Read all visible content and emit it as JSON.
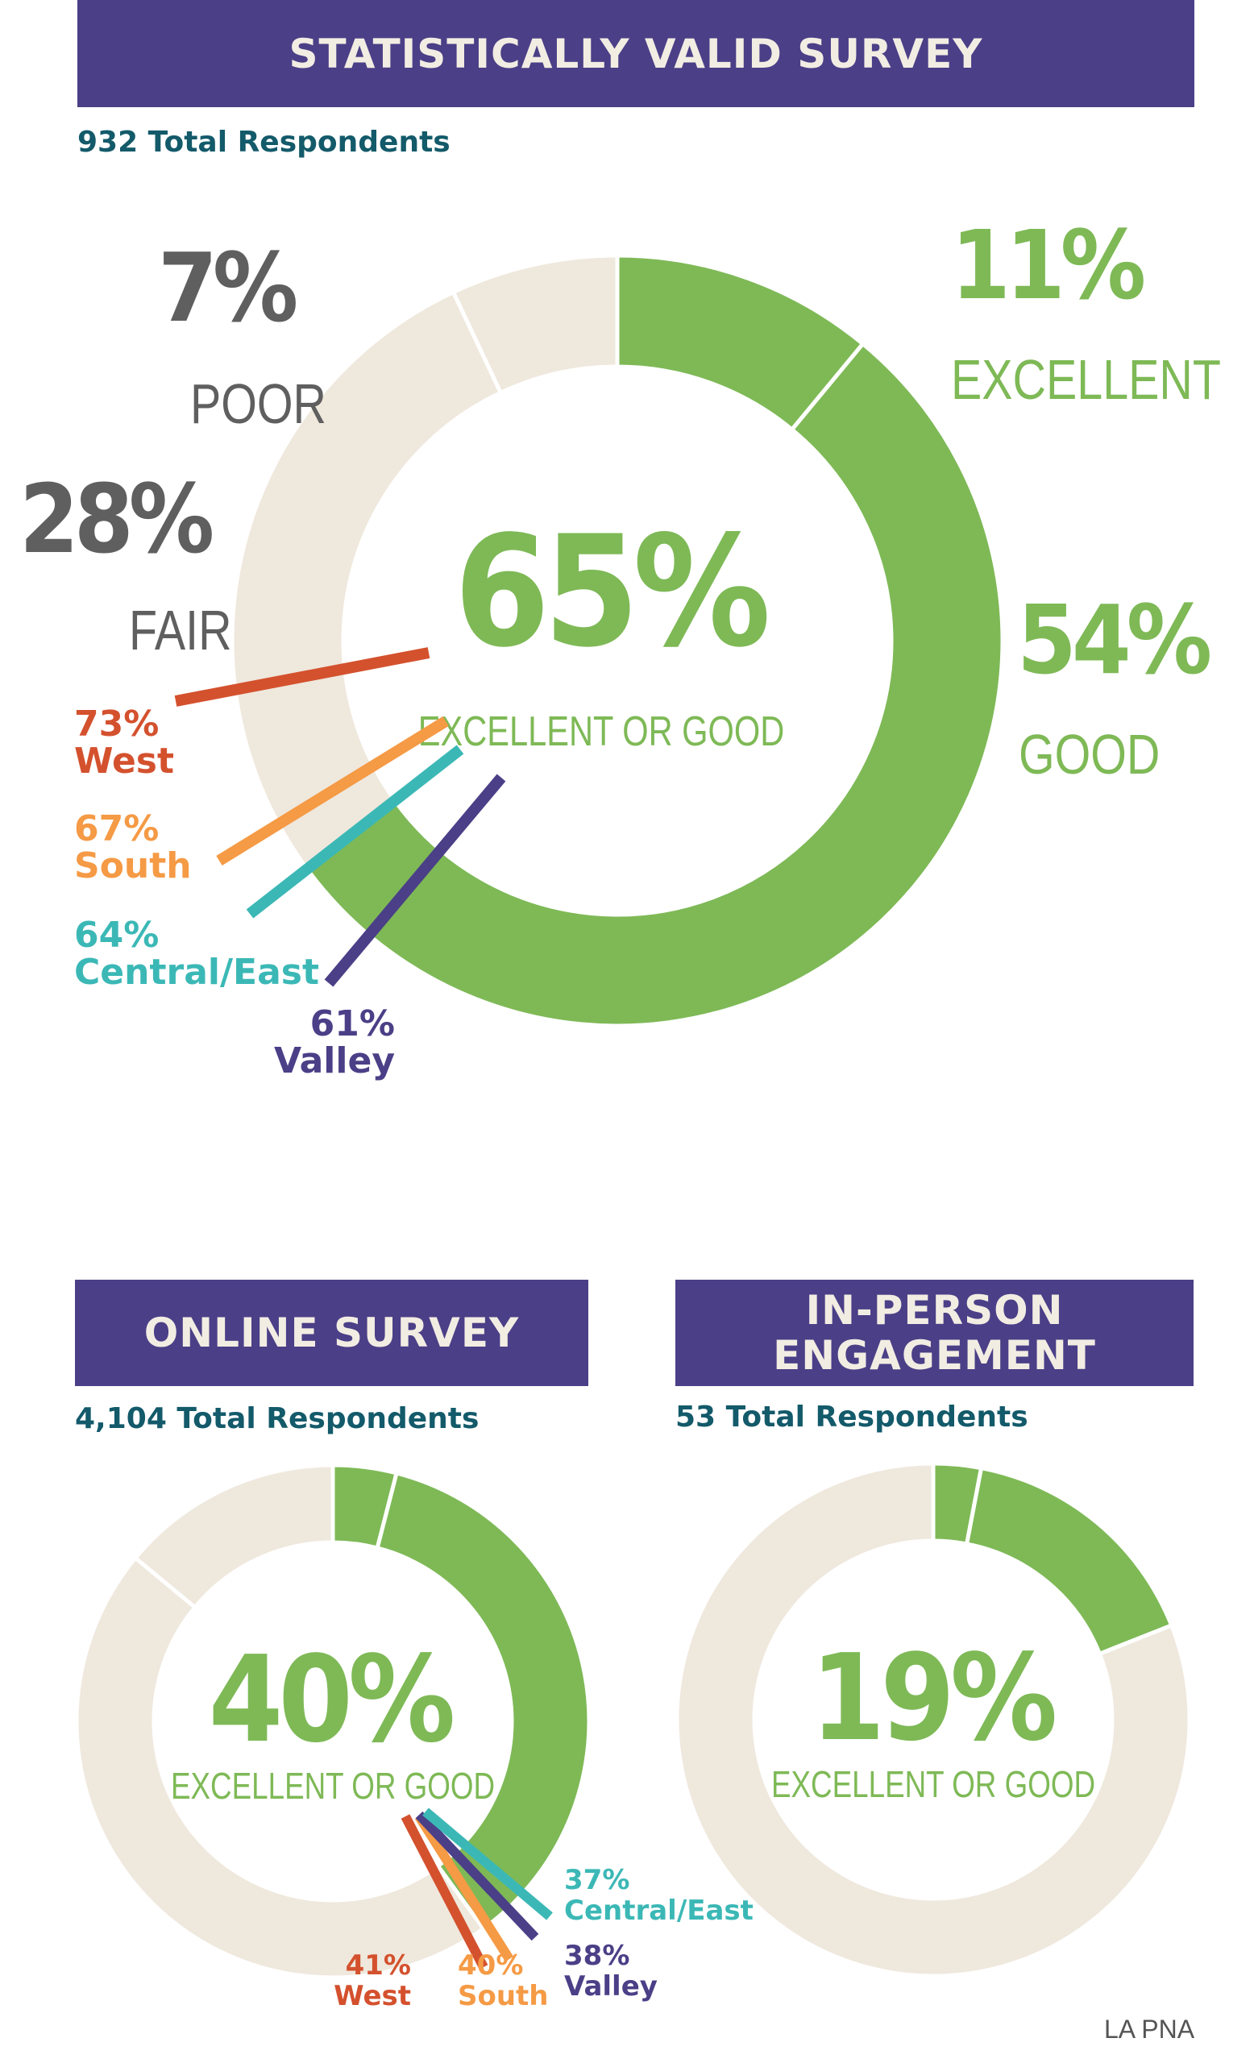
{
  "colors": {
    "banner": "#4b3f87",
    "green": "#7eb956",
    "beige": "#efe8dd",
    "gray": "#5f5f5f",
    "teal_text": "#135a6a",
    "west": "#d4512e",
    "south": "#f59a45",
    "central_east": "#3bb8b6",
    "valley": "#4b3f87"
  },
  "sections": {
    "statistical": {
      "title": "STATISTICALLY VALID SURVEY",
      "respondents": "932 Total Respondents"
    },
    "online": {
      "title": "ONLINE SURVEY",
      "respondents": "4,104 Total Respondents"
    },
    "inperson": {
      "title_line1": "IN-PERSON",
      "title_line2": "ENGAGEMENT",
      "respondents": "53 Total Respondents"
    }
  },
  "credit": "LA PNA",
  "chart_data": [
    {
      "type": "pie",
      "id": "statistical",
      "center_value": "65%",
      "center_label": "EXCELLENT OR GOOD",
      "slices": [
        {
          "label": "EXCELLENT",
          "value": 11,
          "display": "11%",
          "color": "#7eb956"
        },
        {
          "label": "GOOD",
          "value": 54,
          "display": "54%",
          "color": "#7eb956"
        },
        {
          "label": "FAIR",
          "value": 28,
          "display": "28%",
          "color": "#efe8dd"
        },
        {
          "label": "POOR",
          "value": 7,
          "display": "7%",
          "color": "#efe8dd"
        }
      ],
      "regions": [
        {
          "name": "West",
          "value": 73,
          "display": "73%",
          "color": "#d4512e"
        },
        {
          "name": "South",
          "value": 67,
          "display": "67%",
          "color": "#f59a45"
        },
        {
          "name": "Central/East",
          "value": 64,
          "display": "64%",
          "color": "#3bb8b6"
        },
        {
          "name": "Valley",
          "value": 61,
          "display": "61%",
          "color": "#4b3f87"
        }
      ]
    },
    {
      "type": "pie",
      "id": "online",
      "center_value": "40%",
      "center_label": "EXCELLENT OR GOOD",
      "slices": [
        {
          "value": 4,
          "color": "#7eb956"
        },
        {
          "value": 36,
          "color": "#7eb956"
        },
        {
          "value": 46,
          "color": "#efe8dd"
        },
        {
          "value": 14,
          "color": "#efe8dd"
        }
      ],
      "regions": [
        {
          "name": "West",
          "value": 41,
          "display": "41%",
          "color": "#d4512e"
        },
        {
          "name": "South",
          "value": 40,
          "display": "40%",
          "color": "#f59a45"
        },
        {
          "name": "Central/East",
          "value": 37,
          "display": "37%",
          "color": "#3bb8b6"
        },
        {
          "name": "Valley",
          "value": 38,
          "display": "38%",
          "color": "#4b3f87"
        }
      ]
    },
    {
      "type": "pie",
      "id": "inperson",
      "center_value": "19%",
      "center_label": "EXCELLENT OR GOOD",
      "slices": [
        {
          "value": 3,
          "color": "#7eb956"
        },
        {
          "value": 16,
          "color": "#7eb956"
        },
        {
          "value": 81,
          "color": "#efe8dd"
        }
      ]
    }
  ]
}
